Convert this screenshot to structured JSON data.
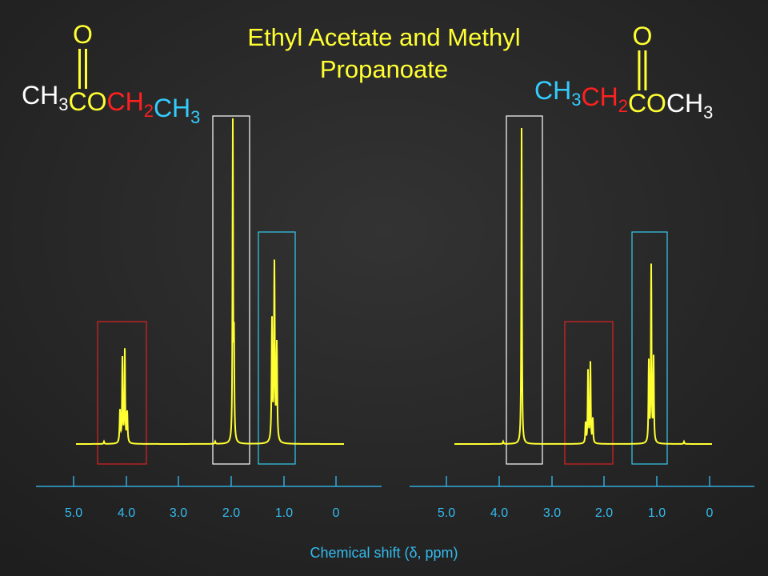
{
  "title": [
    "Ethyl Acetate and Methyl",
    "Propanoate"
  ],
  "left_molecule": {
    "carbonyl": "O",
    "parts": [
      {
        "text": "CH",
        "sub": "3",
        "color": "#ffffff"
      },
      {
        "text": "CO",
        "color": "#ffff33"
      },
      {
        "text": "CH",
        "sub": "2",
        "color": "#ff2020"
      },
      {
        "text": "CH",
        "sub": "3",
        "color": "#33ccff"
      }
    ]
  },
  "right_molecule": {
    "carbonyl": "O",
    "parts": [
      {
        "text": "CH",
        "sub": "3",
        "color": "#33ccff"
      },
      {
        "text": "CH",
        "sub": "2",
        "color": "#ff2020"
      },
      {
        "text": "CO",
        "color": "#ffff33"
      },
      {
        "text": "CH",
        "sub": "3",
        "color": "#ffffff"
      }
    ]
  },
  "left_axis_ticks": [
    "5.0",
    "4.0",
    "3.0",
    "2.0",
    "1.0",
    "0"
  ],
  "right_axis_ticks": [
    "5.0",
    "4.0",
    "3.0",
    "2.0",
    "1.0",
    "0"
  ],
  "axis_label": "Chemical shift (δ, ppm)"
}
